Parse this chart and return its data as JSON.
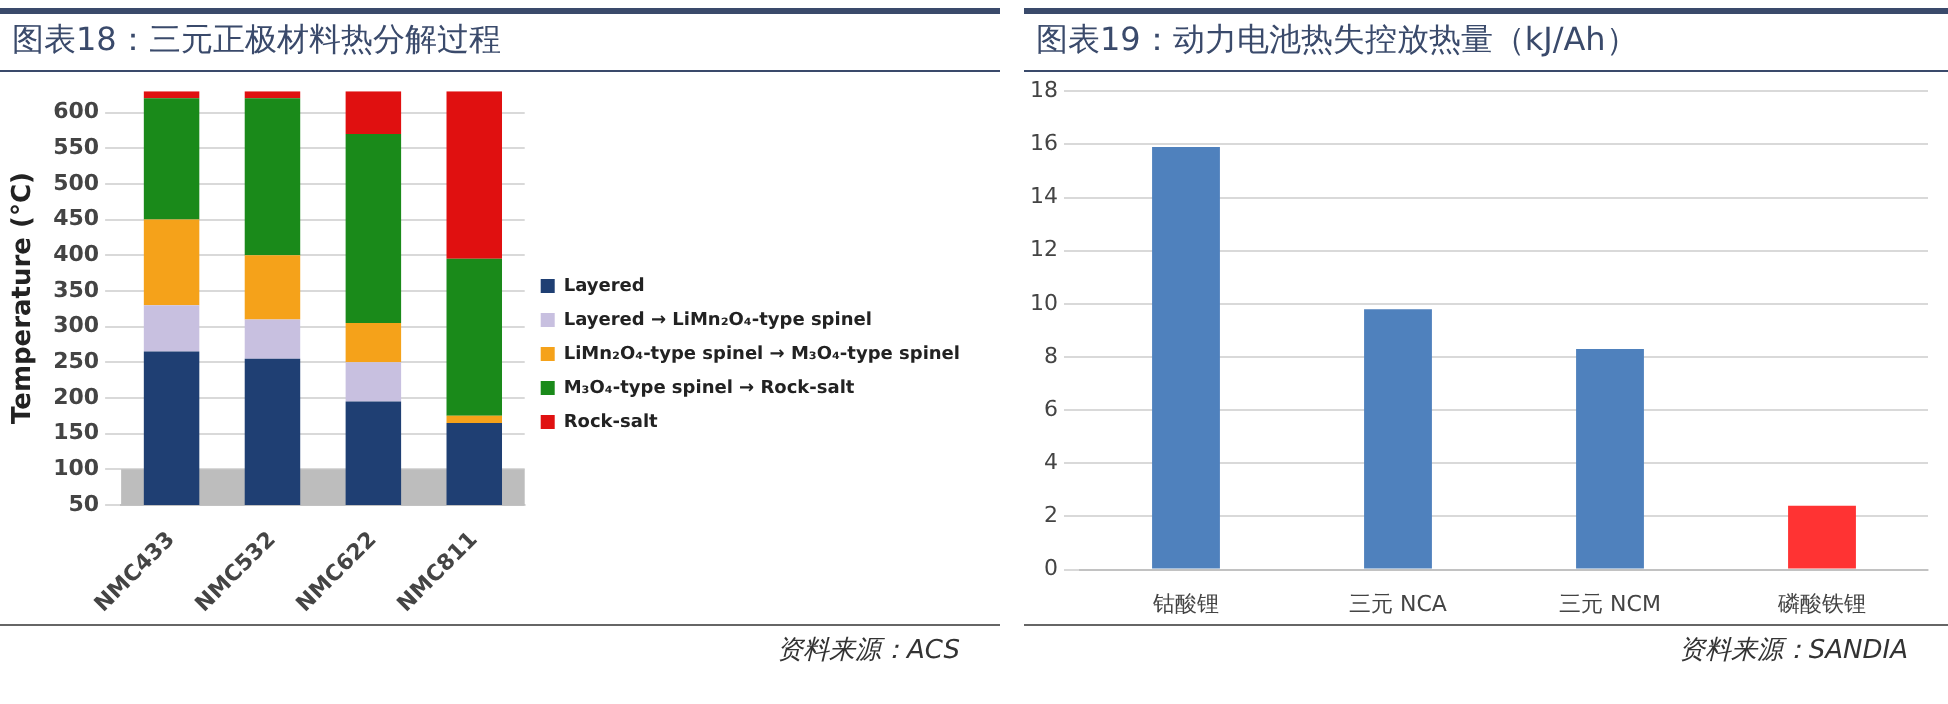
{
  "chart_data": [
    {
      "type": "bar",
      "title": "图表18：三元正极材料热分解过程",
      "ylabel": "Temperature (°C)",
      "categories": [
        "NMC433",
        "NMC532",
        "NMC622",
        "NMC811"
      ],
      "series": [
        {
          "name": "Layered",
          "color": "#1f3f73",
          "base": [
            50,
            50,
            50,
            50
          ],
          "values": [
            215,
            205,
            145,
            115
          ]
        },
        {
          "name": "Layered → LiMn₂O₄-type spinel",
          "color": "#c8c0e0",
          "base": [
            265,
            255,
            195,
            null
          ],
          "values": [
            65,
            55,
            55,
            null
          ]
        },
        {
          "name": "LiMn₂O₄-type spinel → M₃O₄-type spinel",
          "color": "#f5a21a",
          "base": [
            330,
            310,
            250,
            165
          ],
          "values": [
            120,
            90,
            55,
            10
          ]
        },
        {
          "name": "M₃O₄-type spinel → Rock-salt",
          "color": "#1a8a1a",
          "base": [
            450,
            400,
            305,
            175
          ],
          "values": [
            170,
            220,
            265,
            220
          ]
        },
        {
          "name": "Rock-salt",
          "color": "#e01010",
          "base": [
            620,
            620,
            570,
            395
          ],
          "values": [
            10,
            10,
            60,
            235
          ]
        }
      ],
      "ylim": [
        50,
        630
      ],
      "yticks": [
        50,
        100,
        150,
        200,
        250,
        300,
        350,
        400,
        450,
        500,
        550,
        600
      ],
      "grid": "y",
      "legend": "right",
      "bands": [
        {
          "axis": "y",
          "from": 50,
          "to": 100,
          "color": "#bdbdbd"
        }
      ],
      "annotations": [
        "资料来源：ACS"
      ]
    },
    {
      "type": "bar",
      "title": "图表19：动力电池热失控放热量（kJ/Ah）",
      "categories": [
        "钴酸锂",
        "三元 NCA",
        "三元 NCM",
        "磷酸铁锂"
      ],
      "values": [
        15.9,
        9.8,
        8.3,
        2.4
      ],
      "colors": [
        "#4f81bd",
        "#4f81bd",
        "#4f81bd",
        "#ff3333"
      ],
      "ylim": [
        0,
        18
      ],
      "yticks": [
        0,
        2,
        4,
        6,
        8,
        10,
        12,
        14,
        16,
        18
      ],
      "grid": "y",
      "annotations": [
        "资料来源：SANDIA"
      ]
    }
  ]
}
